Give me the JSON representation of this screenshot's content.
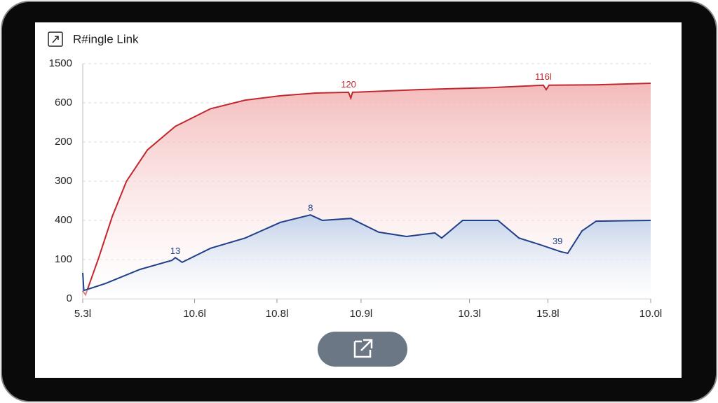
{
  "title": "R#ingle Link",
  "chart_data": {
    "type": "area",
    "xlim": [
      0,
      100
    ],
    "xticks": [
      {
        "value": 0,
        "label": "5.3l"
      },
      {
        "value": 19.7,
        "label": "10.6l"
      },
      {
        "value": 34.2,
        "label": "10.8l"
      },
      {
        "value": 49,
        "label": "10.9l"
      },
      {
        "value": 68.1,
        "label": "10.3l"
      },
      {
        "value": 81.9,
        "label": "15.8l"
      },
      {
        "value": 100,
        "label": "10.0l"
      }
    ],
    "ylim": [
      0,
      6
    ],
    "yticks": [
      {
        "value": 0,
        "label": "0"
      },
      {
        "value": 1,
        "label": "100"
      },
      {
        "value": 2,
        "label": "400"
      },
      {
        "value": 3,
        "label": "300"
      },
      {
        "value": 4,
        "label": "200"
      },
      {
        "value": 5,
        "label": "600"
      },
      {
        "value": 6,
        "label": "1500"
      }
    ],
    "grid": true,
    "series": [
      {
        "color": "#c0282d",
        "fill": "#f2b8b8",
        "x": [
          0,
          0.5,
          2.7,
          5.2,
          7.7,
          11.4,
          16.3,
          22.5,
          28.6,
          34.8,
          41,
          46.8,
          47.2,
          47.5,
          59.5,
          71.9,
          81.1,
          81.6,
          82.1,
          90.4,
          100
        ],
        "values": [
          0.2,
          0.1,
          1.0,
          2.1,
          3.0,
          3.8,
          4.4,
          4.85,
          5.07,
          5.18,
          5.25,
          5.27,
          5.12,
          5.27,
          5.34,
          5.39,
          5.45,
          5.34,
          5.45,
          5.46,
          5.5
        ]
      },
      {
        "color": "#1f3f8a",
        "fill": "#c9d8ee",
        "x": [
          0,
          0.2,
          4,
          10.1,
          15.7,
          16.3,
          17.5,
          22.5,
          28.6,
          34.8,
          40.1,
          42.2,
          47.2,
          52.1,
          57,
          62,
          63.2,
          66.9,
          73.1,
          76.8,
          80.5,
          84.2,
          85.4,
          87.9,
          90.4,
          100
        ],
        "values": [
          0.66,
          0.21,
          0.39,
          0.75,
          0.98,
          1.05,
          0.93,
          1.29,
          1.55,
          1.95,
          2.14,
          2.0,
          2.05,
          1.7,
          1.59,
          1.68,
          1.55,
          2.0,
          2.0,
          1.55,
          1.38,
          1.2,
          1.16,
          1.73,
          1.98,
          2.0
        ]
      }
    ],
    "annotations": [
      {
        "text": "120",
        "x": 46.8,
        "y": 5.45,
        "color": "#c0282d"
      },
      {
        "text": "116l",
        "x": 81.1,
        "y": 5.65,
        "color": "#c0282d"
      },
      {
        "text": "8",
        "x": 40.1,
        "y": 2.3,
        "color": "#1f3f8a"
      },
      {
        "text": "13",
        "x": 16.3,
        "y": 1.2,
        "color": "#1f3f8a"
      },
      {
        "text": "39",
        "x": 83.6,
        "y": 1.45,
        "color": "#1f3f8a"
      }
    ]
  }
}
